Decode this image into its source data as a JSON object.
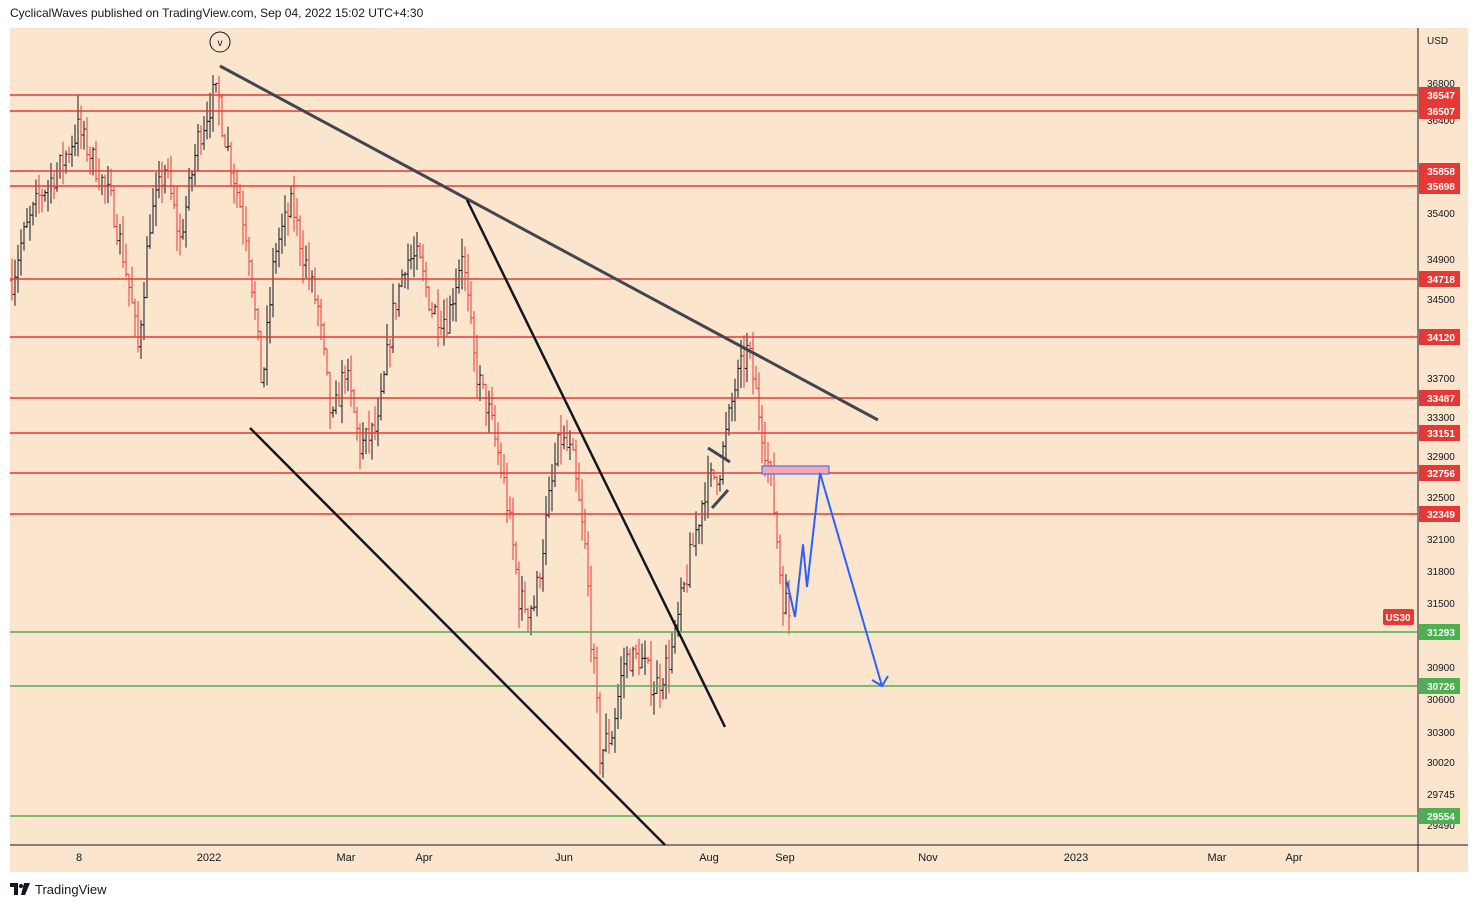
{
  "header": {
    "text": "CyclicalWaves published on TradingView.com, Sep 04, 2022 15:02 UTC+4:30"
  },
  "footer": {
    "brand": "TradingView"
  },
  "colors": {
    "background": "#fbe5cd",
    "resistance": "#e53935",
    "support": "#4caf50",
    "candle_up": "#131722",
    "candle_down": "#e53935",
    "trendline": "#131722",
    "projection": "#2962ff",
    "symbol_badge": "#e53935"
  },
  "chart_data": {
    "type": "candlestick",
    "symbol": "US30",
    "currency": "USD",
    "wave_label": "v",
    "y_axis_ticks": [
      36800,
      36400,
      35400,
      34900,
      34500,
      33700,
      33300,
      32900,
      32500,
      32100,
      31800,
      31500,
      30900,
      30600,
      30300,
      30020,
      29745,
      29490
    ],
    "x_axis_ticks": [
      "8",
      "2022",
      "Mar",
      "Apr",
      "Jun",
      "Aug",
      "Sep",
      "Nov",
      "2023",
      "Mar",
      "Apr"
    ],
    "resistance_levels": [
      36547,
      36507,
      35858,
      35698,
      34718,
      34120,
      33487,
      33151,
      32756,
      32349
    ],
    "support_levels": [
      31293,
      30726,
      29554
    ],
    "current_price_label": "US30",
    "projection_path": [
      31700,
      31400,
      32050,
      31650,
      32756,
      30726
    ],
    "notes": "Daily price bars drawn procedurally, Nov 2021 - Sep 2022"
  }
}
